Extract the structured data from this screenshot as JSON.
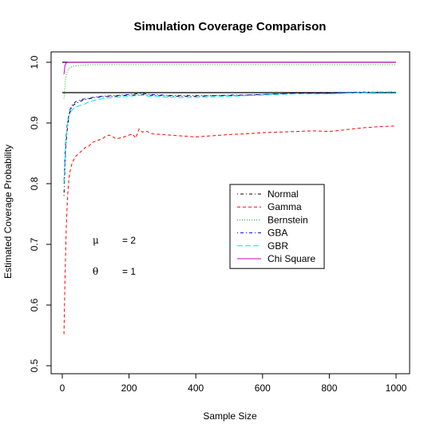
{
  "chart_data": {
    "type": "line",
    "title": "Simulation Coverage Comparison",
    "xlabel": "Sample Size",
    "ylabel": "Estimated Coverage Probability",
    "xlim": [
      0,
      1000
    ],
    "ylim": [
      0.5,
      1.0
    ],
    "x_ticks": [
      "0",
      "200",
      "400",
      "600",
      "800",
      "1000"
    ],
    "y_ticks": [
      "0.5",
      "0.6",
      "0.7",
      "0.8",
      "0.9",
      "1.0"
    ],
    "grid": false,
    "legend_position": "center-right",
    "reference_lines": [
      1.0,
      0.95
    ],
    "annotations": [
      {
        "symbol": "μ",
        "value": "= 2"
      },
      {
        "symbol": "θ",
        "value": "= 1"
      }
    ],
    "series": [
      {
        "name": "Normal",
        "color": "#000000",
        "dash": "dashdot",
        "x": [
          5,
          10,
          15,
          20,
          25,
          30,
          40,
          50,
          60,
          70,
          80,
          100,
          120,
          150,
          180,
          200,
          220,
          240,
          260,
          300,
          350,
          400,
          450,
          500,
          550,
          600,
          650,
          700,
          750,
          800,
          850,
          900,
          950,
          1000
        ],
        "y": [
          0.78,
          0.855,
          0.89,
          0.912,
          0.922,
          0.928,
          0.932,
          0.935,
          0.937,
          0.939,
          0.94,
          0.942,
          0.943,
          0.944,
          0.945,
          0.946,
          0.946,
          0.947,
          0.946,
          0.945,
          0.944,
          0.944,
          0.945,
          0.945,
          0.946,
          0.947,
          0.948,
          0.949,
          0.949,
          0.949,
          0.95,
          0.95,
          0.95,
          0.95
        ]
      },
      {
        "name": "Gamma",
        "color": "#ff0000",
        "dash": "dashed",
        "x": [
          5,
          8,
          12,
          16,
          20,
          25,
          30,
          40,
          50,
          60,
          70,
          80,
          90,
          100,
          110,
          120,
          130,
          140,
          150,
          160,
          170,
          180,
          190,
          200,
          210,
          220,
          230,
          240,
          250,
          270,
          300,
          350,
          400,
          450,
          500,
          550,
          600,
          650,
          700,
          750,
          800,
          850,
          900,
          950,
          1000
        ],
        "y": [
          0.552,
          0.64,
          0.73,
          0.78,
          0.81,
          0.825,
          0.835,
          0.845,
          0.85,
          0.855,
          0.86,
          0.862,
          0.868,
          0.87,
          0.872,
          0.874,
          0.878,
          0.88,
          0.878,
          0.874,
          0.875,
          0.876,
          0.878,
          0.88,
          0.882,
          0.875,
          0.89,
          0.885,
          0.887,
          0.882,
          0.881,
          0.879,
          0.877,
          0.879,
          0.881,
          0.882,
          0.884,
          0.885,
          0.886,
          0.887,
          0.886,
          0.889,
          0.892,
          0.894,
          0.895
        ]
      },
      {
        "name": "Bernstein",
        "color": "#00b000",
        "dash": "dotted",
        "x": [
          5,
          10,
          15,
          20,
          25,
          30,
          40,
          50,
          60,
          80,
          100,
          150,
          200,
          300,
          400,
          500,
          600,
          700,
          800,
          900,
          1000
        ],
        "y": [
          0.94,
          0.975,
          0.985,
          0.99,
          0.992,
          0.993,
          0.994,
          0.995,
          0.995,
          0.996,
          0.996,
          0.996,
          0.996,
          0.996,
          0.996,
          0.996,
          0.996,
          0.996,
          0.996,
          0.996,
          0.996
        ]
      },
      {
        "name": "GBA",
        "color": "#0000ff",
        "dash": "dashdot",
        "x": [
          5,
          10,
          15,
          20,
          25,
          30,
          40,
          50,
          60,
          70,
          80,
          100,
          120,
          150,
          180,
          200,
          220,
          240,
          260,
          300,
          350,
          400,
          450,
          500,
          550,
          600,
          650,
          700,
          750,
          800,
          850,
          900,
          950,
          1000
        ],
        "y": [
          0.8,
          0.87,
          0.9,
          0.915,
          0.925,
          0.93,
          0.935,
          0.937,
          0.939,
          0.94,
          0.941,
          0.943,
          0.944,
          0.945,
          0.946,
          0.947,
          0.948,
          0.949,
          0.947,
          0.946,
          0.945,
          0.945,
          0.945,
          0.946,
          0.946,
          0.947,
          0.948,
          0.949,
          0.949,
          0.949,
          0.95,
          0.951,
          0.951,
          0.951
        ]
      },
      {
        "name": "GBR",
        "color": "#00e5ee",
        "dash": "longdash",
        "x": [
          5,
          10,
          15,
          20,
          25,
          30,
          40,
          50,
          60,
          70,
          80,
          100,
          120,
          150,
          180,
          200,
          220,
          240,
          260,
          300,
          350,
          400,
          450,
          500,
          550,
          600,
          650,
          700,
          750,
          800,
          850,
          900,
          950,
          1000
        ],
        "y": [
          0.8,
          0.865,
          0.895,
          0.91,
          0.918,
          0.922,
          0.926,
          0.928,
          0.93,
          0.932,
          0.935,
          0.938,
          0.94,
          0.942,
          0.943,
          0.944,
          0.945,
          0.946,
          0.944,
          0.943,
          0.942,
          0.942,
          0.943,
          0.944,
          0.945,
          0.946,
          0.947,
          0.948,
          0.948,
          0.948,
          0.949,
          0.95,
          0.951,
          0.951
        ]
      },
      {
        "name": "Chi Square",
        "color": "#cc00cc",
        "dash": "solid",
        "x": [
          5,
          8,
          12,
          16,
          20,
          30,
          50,
          100,
          200,
          400,
          600,
          800,
          1000
        ],
        "y": [
          0.98,
          0.995,
          0.999,
          1.0,
          1.0,
          1.0,
          1.0,
          1.0,
          1.0,
          1.0,
          1.0,
          1.0,
          1.0
        ]
      }
    ]
  }
}
